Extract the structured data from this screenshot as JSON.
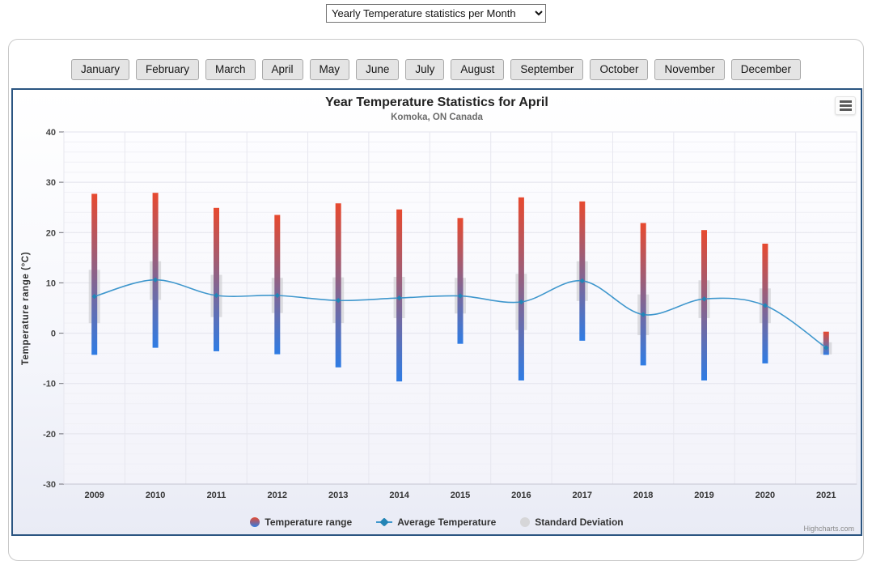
{
  "page": {
    "stat_dropdown": {
      "selected": "Yearly Temperature statistics per Month",
      "options": [
        "Yearly Temperature statistics per Month"
      ]
    },
    "month_buttons": [
      "January",
      "February",
      "March",
      "April",
      "May",
      "June",
      "July",
      "August",
      "September",
      "October",
      "November",
      "December"
    ]
  },
  "chart": {
    "credits": "Highcharts.com",
    "context_menu_icon": "hamburger-menu-icon"
  },
  "chart_data": {
    "type": "columnrange",
    "title": "Year Temperature Statistics for April",
    "subtitle": "Komoka, ON Canada",
    "xlabel": "",
    "ylabel": "Temperature range (°C)",
    "ylim": [
      -30,
      40
    ],
    "y_tick_interval": 10,
    "y_minor_interval": 2,
    "grid": true,
    "legend_position": "bottom",
    "categories": [
      "2009",
      "2010",
      "2011",
      "2012",
      "2013",
      "2014",
      "2015",
      "2016",
      "2017",
      "2018",
      "2019",
      "2020",
      "2021"
    ],
    "series": [
      {
        "name": "Temperature range",
        "type": "columnrange",
        "color_top": "#e7492f",
        "color_bottom": "#2f7ce4",
        "ranges": [
          [
            -4.3,
            27.7
          ],
          [
            -2.9,
            27.9
          ],
          [
            -3.6,
            24.9
          ],
          [
            -4.2,
            23.5
          ],
          [
            -6.8,
            25.8
          ],
          [
            -9.6,
            24.6
          ],
          [
            -2.1,
            22.9
          ],
          [
            -9.4,
            27.0
          ],
          [
            -1.5,
            26.2
          ],
          [
            -6.4,
            21.9
          ],
          [
            -9.4,
            20.5
          ],
          [
            -6.0,
            17.8
          ],
          [
            -4.3,
            0.3
          ]
        ]
      },
      {
        "name": "Average Temperature",
        "type": "spline",
        "color": "#3f97cd",
        "marker_color": "#2384b5",
        "values": [
          7.3,
          10.6,
          7.5,
          7.5,
          6.5,
          7.0,
          7.4,
          6.2,
          10.4,
          3.7,
          6.8,
          5.5,
          -2.9
        ]
      },
      {
        "name": "Standard Deviation",
        "type": "columnrange",
        "color": "#c4c4c8",
        "ranges": [
          [
            2.0,
            12.6
          ],
          [
            6.6,
            14.3
          ],
          [
            3.2,
            11.6
          ],
          [
            4.0,
            11.0
          ],
          [
            2.0,
            11.1
          ],
          [
            3.0,
            11.2
          ],
          [
            3.9,
            11.0
          ],
          [
            0.6,
            11.8
          ],
          [
            6.4,
            14.3
          ],
          [
            -0.4,
            7.7
          ],
          [
            3.0,
            10.5
          ],
          [
            2.0,
            8.9
          ],
          [
            -4.2,
            -1.8
          ]
        ]
      }
    ]
  }
}
